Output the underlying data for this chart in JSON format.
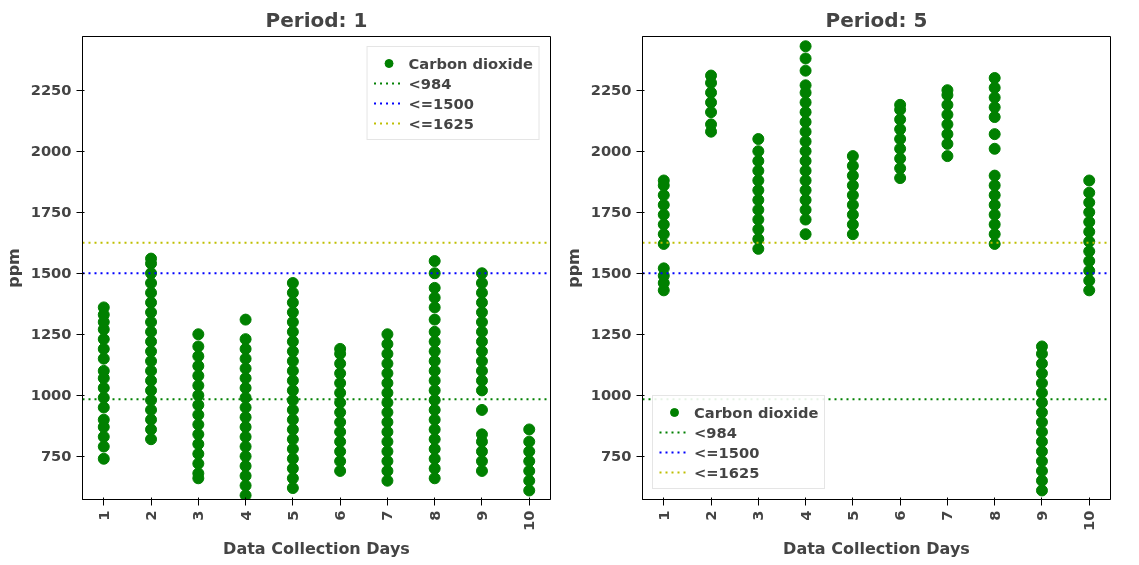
{
  "chart_data": [
    {
      "type": "scatter",
      "title": "Period: 1",
      "xlabel": "Data Collection Days",
      "ylabel": "ppm",
      "xlim": [
        0.55,
        10.45
      ],
      "xticks": [
        1,
        2,
        3,
        4,
        5,
        6,
        7,
        8,
        9,
        10
      ],
      "ylim": [
        573,
        2470
      ],
      "yticks": [
        750,
        1000,
        1250,
        1500,
        1750,
        2000,
        2250
      ],
      "grid": false,
      "legend": "top right",
      "marker": "circle",
      "series": [
        {
          "name": "Carbon dioxide",
          "color": "#008000",
          "x": [
            1,
            1,
            1,
            1,
            1,
            1,
            1,
            1,
            1,
            1,
            1,
            1,
            1,
            1,
            1,
            1,
            1,
            2,
            2,
            2,
            2,
            2,
            2,
            2,
            2,
            2,
            2,
            2,
            2,
            2,
            2,
            2,
            2,
            2,
            2,
            2,
            2,
            3,
            3,
            3,
            3,
            3,
            3,
            3,
            3,
            3,
            3,
            3,
            3,
            3,
            3,
            3,
            3,
            4,
            4,
            4,
            4,
            4,
            4,
            4,
            4,
            4,
            4,
            4,
            4,
            4,
            4,
            4,
            4,
            4,
            4,
            5,
            5,
            5,
            5,
            5,
            5,
            5,
            5,
            5,
            5,
            5,
            5,
            5,
            5,
            5,
            5,
            5,
            5,
            5,
            5,
            5,
            5,
            6,
            6,
            6,
            6,
            6,
            6,
            6,
            6,
            6,
            6,
            6,
            6,
            6,
            6,
            7,
            7,
            7,
            7,
            7,
            7,
            7,
            7,
            7,
            7,
            7,
            7,
            7,
            7,
            7,
            7,
            8,
            8,
            8,
            8,
            8,
            8,
            8,
            8,
            8,
            8,
            8,
            8,
            8,
            8,
            8,
            8,
            8,
            8,
            8,
            8,
            8,
            8,
            9,
            9,
            9,
            9,
            9,
            9,
            9,
            9,
            9,
            9,
            9,
            9,
            9,
            9,
            9,
            9,
            9,
            9,
            9,
            10,
            10,
            10,
            10,
            10,
            10,
            10
          ],
          "values": [
            740,
            790,
            830,
            870,
            900,
            950,
            990,
            1030,
            1070,
            1100,
            1150,
            1190,
            1230,
            1270,
            1300,
            1330,
            1360,
            820,
            860,
            900,
            940,
            980,
            1020,
            1060,
            1100,
            1140,
            1180,
            1220,
            1260,
            1300,
            1340,
            1380,
            1420,
            1460,
            1500,
            1540,
            1560,
            660,
            680,
            720,
            760,
            800,
            840,
            880,
            920,
            960,
            1000,
            1040,
            1080,
            1120,
            1160,
            1200,
            1250,
            590,
            630,
            670,
            710,
            750,
            790,
            830,
            870,
            910,
            950,
            990,
            1030,
            1070,
            1110,
            1150,
            1190,
            1230,
            1310,
            620,
            660,
            700,
            740,
            780,
            820,
            860,
            900,
            940,
            980,
            1020,
            1060,
            1100,
            1140,
            1180,
            1220,
            1260,
            1300,
            1340,
            1380,
            1420,
            1460,
            690,
            730,
            770,
            810,
            850,
            890,
            930,
            970,
            1010,
            1050,
            1090,
            1130,
            1170,
            1190,
            650,
            690,
            730,
            770,
            810,
            850,
            890,
            930,
            970,
            1010,
            1050,
            1090,
            1130,
            1170,
            1210,
            1250,
            660,
            700,
            740,
            780,
            820,
            860,
            900,
            940,
            980,
            1020,
            1060,
            1100,
            1140,
            1180,
            1220,
            1260,
            1310,
            1360,
            1400,
            1440,
            1500,
            1550,
            690,
            730,
            770,
            810,
            840,
            940,
            1020,
            1060,
            1100,
            1140,
            1180,
            1220,
            1260,
            1300,
            1340,
            1380,
            1420,
            1460,
            1500,
            610,
            650,
            690,
            730,
            770,
            810,
            860
          ]
        }
      ],
      "ref_lines": [
        {
          "axis": "y",
          "value": 984,
          "label": "<984",
          "color": "#008000",
          "line_style": "dotted"
        },
        {
          "axis": "y",
          "value": 1500,
          "label": "<=1500",
          "color": "#0000ff",
          "line_style": "dotted"
        },
        {
          "axis": "y",
          "value": 1625,
          "label": "<=1625",
          "color": "#bfbf00",
          "line_style": "dotted"
        }
      ]
    },
    {
      "type": "scatter",
      "title": "Period: 5",
      "xlabel": "Data Collection Days",
      "ylabel": "ppm",
      "xlim": [
        0.55,
        10.45
      ],
      "xticks": [
        1,
        2,
        3,
        4,
        5,
        6,
        7,
        8,
        9,
        10
      ],
      "ylim": [
        573,
        2470
      ],
      "yticks": [
        750,
        1000,
        1250,
        1500,
        1750,
        2000,
        2250
      ],
      "grid": false,
      "legend": "bottom left",
      "marker": "circle",
      "series": [
        {
          "name": "Carbon dioxide",
          "color": "#008000",
          "x": [
            1,
            1,
            1,
            1,
            1,
            1,
            1,
            1,
            1,
            1,
            1,
            1,
            2,
            2,
            2,
            2,
            2,
            2,
            2,
            3,
            3,
            3,
            3,
            3,
            3,
            3,
            3,
            3,
            3,
            3,
            3,
            4,
            4,
            4,
            4,
            4,
            4,
            4,
            4,
            4,
            4,
            4,
            4,
            4,
            4,
            4,
            4,
            4,
            4,
            4,
            5,
            5,
            5,
            5,
            5,
            5,
            5,
            5,
            5,
            6,
            6,
            6,
            6,
            6,
            6,
            6,
            6,
            6,
            7,
            7,
            7,
            7,
            7,
            7,
            7,
            7,
            8,
            8,
            8,
            8,
            8,
            8,
            8,
            8,
            8,
            8,
            8,
            8,
            8,
            8,
            8,
            9,
            9,
            9,
            9,
            9,
            9,
            9,
            9,
            9,
            9,
            9,
            9,
            9,
            9,
            9,
            9,
            10,
            10,
            10,
            10,
            10,
            10,
            10,
            10,
            10,
            10,
            10,
            10
          ],
          "values": [
            1430,
            1460,
            1490,
            1520,
            1620,
            1660,
            1700,
            1740,
            1780,
            1820,
            1860,
            1880,
            2080,
            2110,
            2160,
            2200,
            2240,
            2280,
            2310,
            1600,
            1640,
            1680,
            1720,
            1760,
            1800,
            1840,
            1880,
            1920,
            1960,
            2000,
            2050,
            1660,
            1720,
            1760,
            1800,
            1840,
            1880,
            1920,
            1960,
            2000,
            2040,
            2080,
            2120,
            2160,
            2200,
            2240,
            2270,
            2330,
            2380,
            2430,
            1660,
            1700,
            1740,
            1780,
            1820,
            1860,
            1900,
            1940,
            1980,
            1890,
            1930,
            1970,
            2010,
            2050,
            2090,
            2130,
            2170,
            2190,
            1980,
            2030,
            2070,
            2110,
            2150,
            2190,
            2230,
            2250,
            1620,
            1660,
            1700,
            1740,
            1780,
            1820,
            1860,
            1900,
            2010,
            2070,
            2140,
            2180,
            2220,
            2260,
            2300,
            610,
            650,
            690,
            730,
            770,
            810,
            850,
            890,
            930,
            970,
            1010,
            1050,
            1090,
            1130,
            1170,
            1200,
            1430,
            1470,
            1510,
            1550,
            1590,
            1630,
            1670,
            1710,
            1750,
            1790,
            1830,
            1880
          ]
        }
      ],
      "ref_lines": [
        {
          "axis": "y",
          "value": 984,
          "label": "<984",
          "color": "#008000",
          "line_style": "dotted"
        },
        {
          "axis": "y",
          "value": 1500,
          "label": "<=1500",
          "color": "#0000ff",
          "line_style": "dotted"
        },
        {
          "axis": "y",
          "value": 1625,
          "label": "<=1625",
          "color": "#bfbf00",
          "line_style": "dotted"
        }
      ]
    }
  ]
}
